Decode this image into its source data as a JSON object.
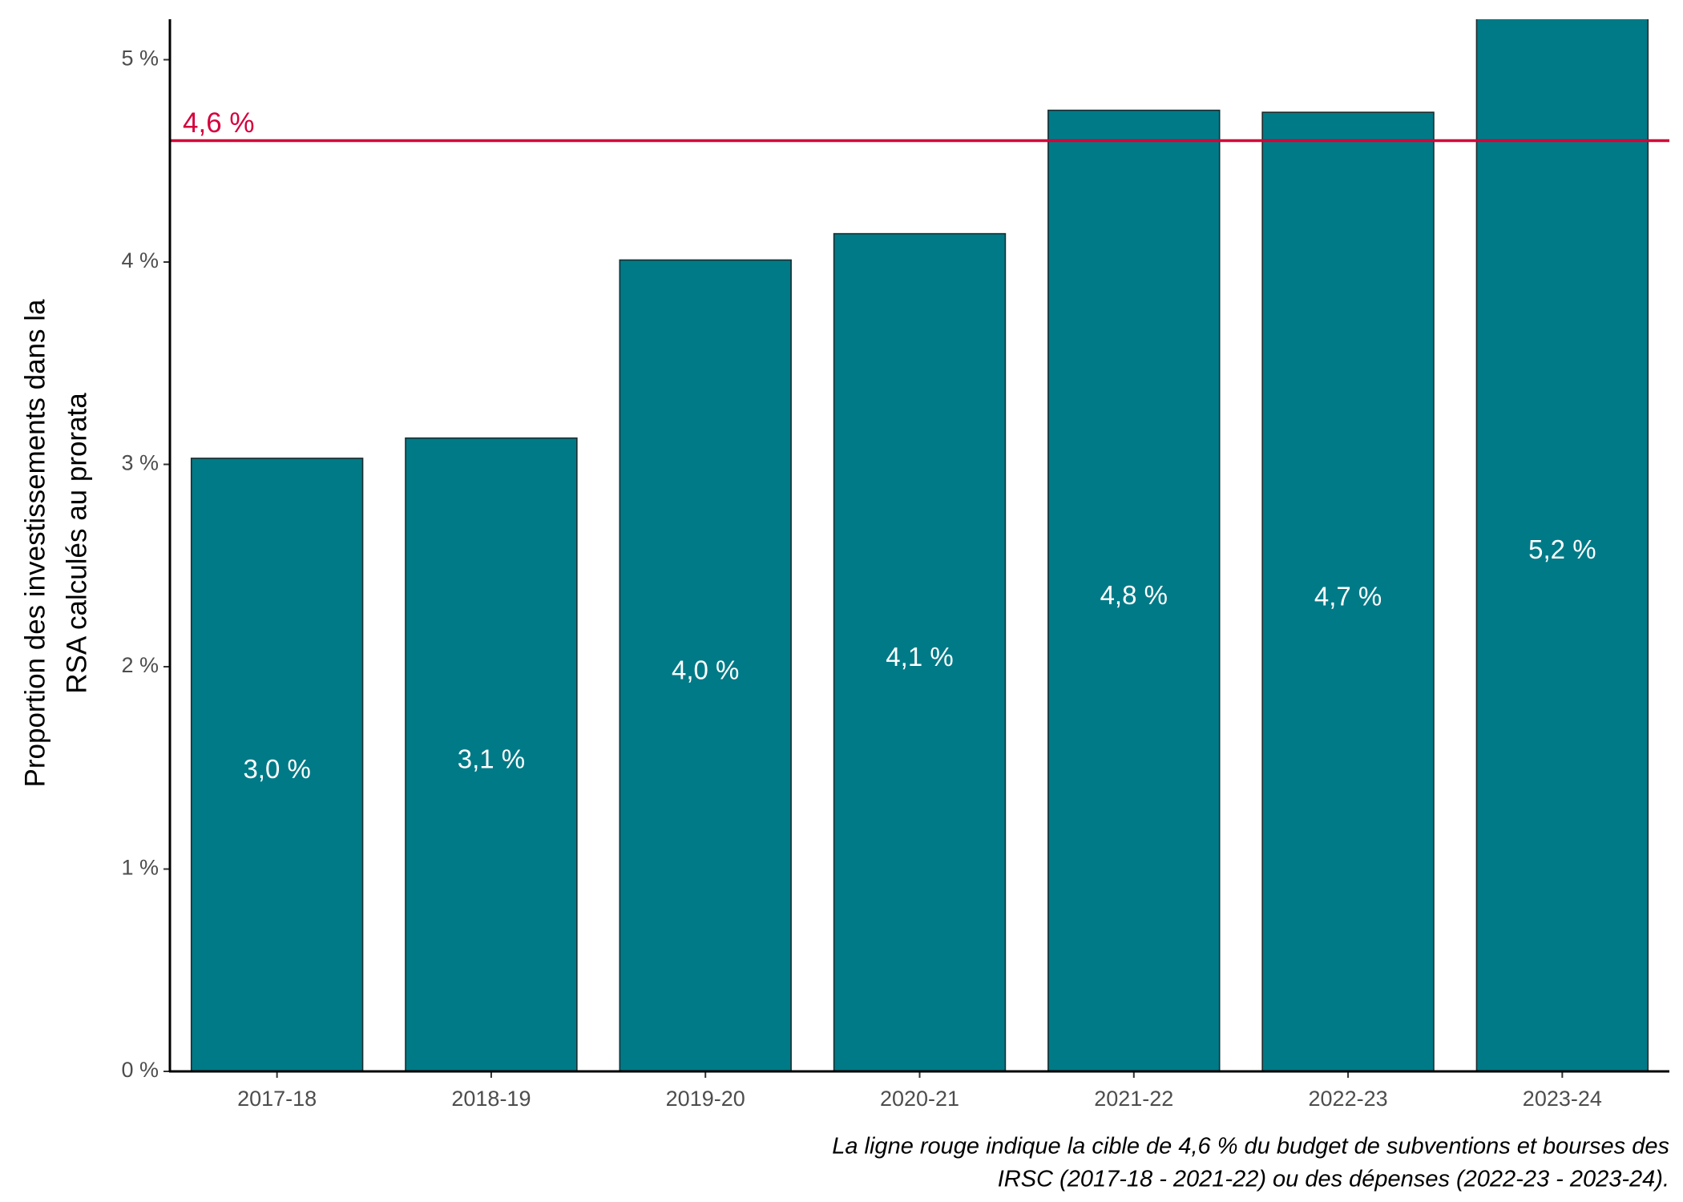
{
  "chart_data": {
    "type": "bar",
    "y_axis_label": [
      "Proportion des investissements dans la",
      "RSA calculés au prorata"
    ],
    "categories": [
      "2017-18",
      "2018-19",
      "2019-20",
      "2020-21",
      "2021-22",
      "2022-23",
      "2023-24"
    ],
    "values": [
      3.03,
      3.13,
      4.01,
      4.14,
      4.75,
      4.74,
      5.23
    ],
    "value_labels": [
      "3,0 %",
      "3,1 %",
      "4,0 %",
      "4,1 %",
      "4,8 %",
      "4,7 %",
      "5,2 %"
    ],
    "color": "#007a87",
    "ylim": [
      0,
      5.2
    ],
    "yticks": [
      {
        "value": 0,
        "label": "0 %"
      },
      {
        "value": 1,
        "label": "1 %"
      },
      {
        "value": 2,
        "label": "2 %"
      },
      {
        "value": 3,
        "label": "3 %"
      },
      {
        "value": 4,
        "label": "4 %"
      },
      {
        "value": 5,
        "label": "5 %"
      }
    ],
    "grid": false,
    "target_line": {
      "value": 4.6,
      "label": "4,6 %",
      "color": "#d4003c"
    },
    "caption": [
      "La ligne rouge indique la cible de 4,6 % du budget de subventions et bourses des",
      "IRSC (2017-18 - 2021-22) ou des dépenses (2022-23 - 2023-24)."
    ]
  }
}
